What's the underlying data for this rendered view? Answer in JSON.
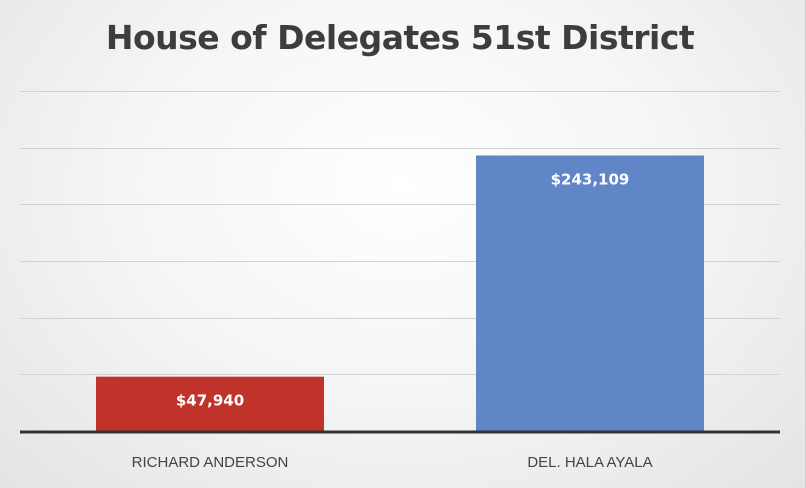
{
  "chart_data": {
    "type": "bar",
    "title": "House of Delegates 51st District",
    "xlabel": "",
    "ylabel": "",
    "categories": [
      "RICHARD ANDERSON",
      "DEL. HALA AYALA"
    ],
    "values": [
      47940,
      243109
    ],
    "data_labels": [
      "$47,940",
      "$243,109"
    ],
    "colors": [
      "#c0332b",
      "#6186c8"
    ],
    "ylim": [
      0,
      300000
    ],
    "grid": true,
    "legend": "none"
  }
}
